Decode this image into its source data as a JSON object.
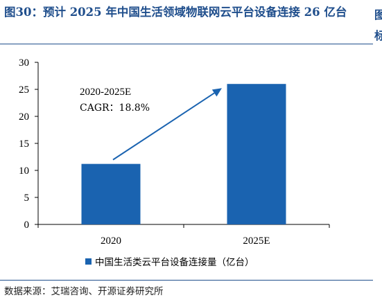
{
  "header": {
    "title": "图30：预计 2025 年中国生活领域物联网云平台设备连接 26 亿台"
  },
  "footer": {
    "source": "数据来源：艾瑞咨询、开源证券研究所"
  },
  "chart_data": {
    "type": "bar",
    "categories": [
      "2020",
      "2025E"
    ],
    "series": [
      {
        "name": "中国生活类云平台设备连接量（亿台）",
        "values": [
          11.2,
          26
        ],
        "color": "#1a63b0"
      }
    ],
    "ylim": [
      0,
      30
    ],
    "yticks": [
      0,
      5,
      10,
      15,
      20,
      25,
      30
    ],
    "grid": false,
    "legend": "bottom",
    "annotation": {
      "line1": "2020-2025E",
      "line2": "CAGR：18.8%"
    },
    "arrow_color": "#1a63b0"
  }
}
